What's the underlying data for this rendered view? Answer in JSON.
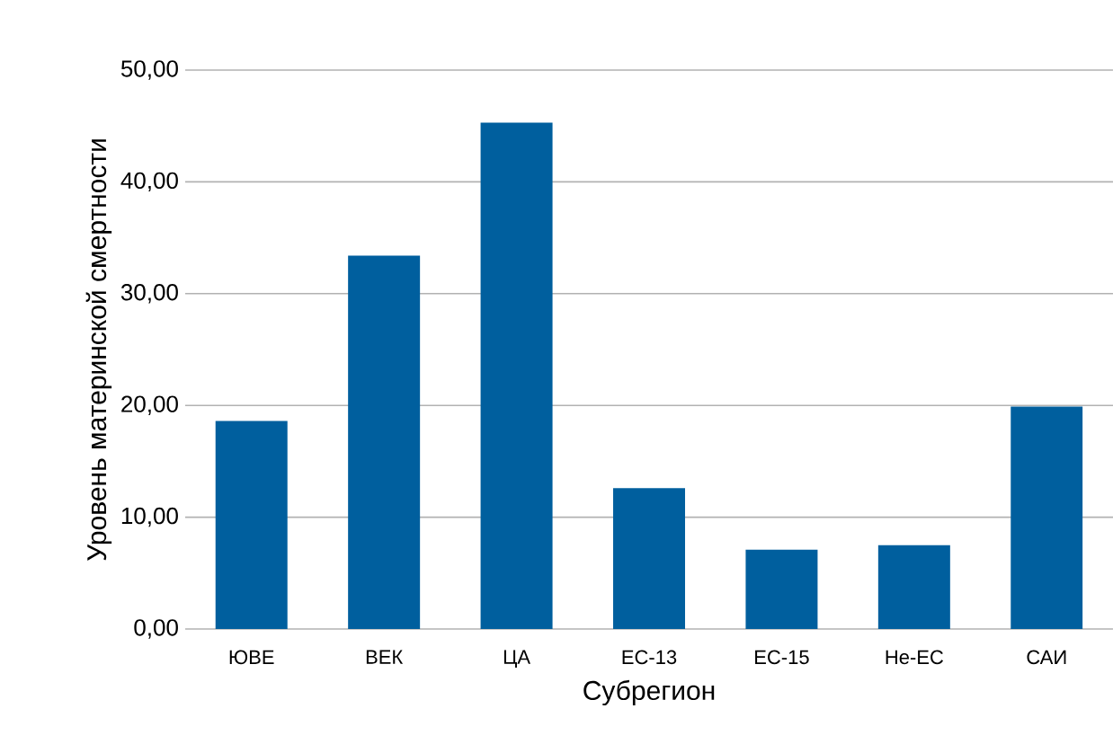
{
  "chart_data": {
    "type": "bar",
    "xlabel": "Субрегион",
    "ylabel": "Уровень материнской смертности",
    "categories": [
      "ЮВЕ",
      "ВЕК",
      "ЦА",
      "ЕС-13",
      "ЕС-15",
      "Не-ЕС",
      "САИ"
    ],
    "values": [
      18.6,
      33.4,
      45.3,
      12.6,
      7.1,
      7.5,
      19.9
    ],
    "color": "#005f9e",
    "ylim": [
      0,
      50
    ],
    "yticks": [
      {
        "value": 0,
        "label": "0,00"
      },
      {
        "value": 10,
        "label": "10,00"
      },
      {
        "value": 20,
        "label": "20,00"
      },
      {
        "value": 30,
        "label": "30,00"
      },
      {
        "value": 40,
        "label": "40,00"
      },
      {
        "value": 50,
        "label": "50,00"
      }
    ],
    "grid": "y"
  }
}
